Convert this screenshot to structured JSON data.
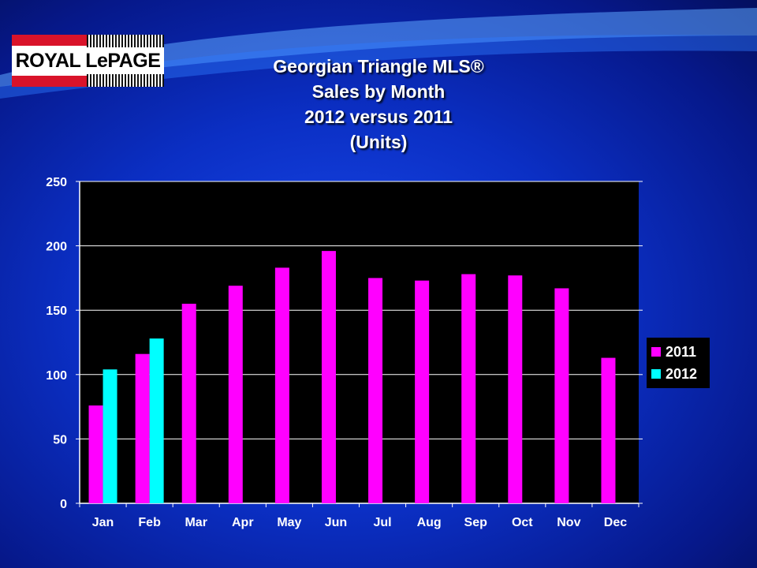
{
  "logo": {
    "text": "ROYAL LePAGE"
  },
  "title_lines": [
    "Georgian Triangle MLS®",
    "Sales by Month",
    "2012 versus 2011",
    "(Units)"
  ],
  "colors": {
    "series_2011": "#ff00ff",
    "series_2012": "#00ffff",
    "plot_bg": "#000000",
    "text": "#ffffff"
  },
  "chart_data": {
    "type": "bar",
    "title": "Georgian Triangle MLS® Sales by Month 2012 versus 2011 (Units)",
    "categories": [
      "Jan",
      "Feb",
      "Mar",
      "Apr",
      "May",
      "Jun",
      "Jul",
      "Aug",
      "Sep",
      "Oct",
      "Nov",
      "Dec"
    ],
    "series": [
      {
        "name": "2011",
        "color": "#ff00ff",
        "values": [
          76,
          116,
          155,
          169,
          183,
          196,
          175,
          173,
          178,
          177,
          167,
          113
        ]
      },
      {
        "name": "2012",
        "color": "#00ffff",
        "values": [
          104,
          128,
          null,
          null,
          null,
          null,
          null,
          null,
          null,
          null,
          null,
          null
        ]
      }
    ],
    "ylim": [
      0,
      250
    ],
    "yticks": [
      0,
      50,
      100,
      150,
      200,
      250
    ],
    "grid": true,
    "legend": "right"
  }
}
